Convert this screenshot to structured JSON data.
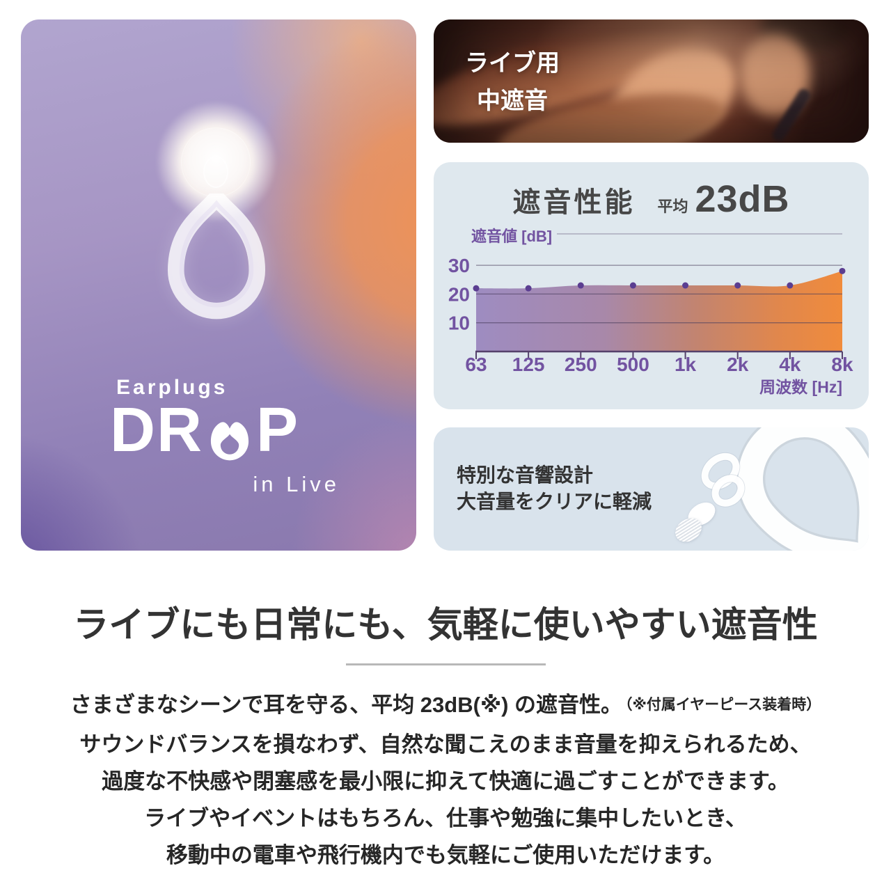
{
  "palette": {
    "page_bg": "#ffffff",
    "chart_panel_bg": "#dfe8ee",
    "feature_panel_bg": "#d9e3ec",
    "accent_purple": "#7253a1",
    "area_orange": "#f08b3c",
    "heading_text": "#333333",
    "body_text": "#262626",
    "chart_title_text": "#474747"
  },
  "brand_panel": {
    "eyebrow": "Earplugs",
    "logo_prefix": "DR",
    "logo_suffix": "P",
    "tagline": "in Live"
  },
  "photo_panel": {
    "label_line1": "ライブ用",
    "label_line2": "中遮音"
  },
  "chart_panel": {
    "title": "遮音性能",
    "average_label": "平均",
    "average_value": "23dB"
  },
  "chart_data": {
    "type": "area",
    "title": "遮音性能 平均 23dB",
    "categories": [
      "63",
      "125",
      "250",
      "500",
      "1k",
      "2k",
      "4k",
      "8k"
    ],
    "values": [
      22,
      22,
      23,
      23,
      23,
      23,
      23,
      28
    ],
    "xlabel": "周波数 [Hz]",
    "ylabel": "遮音値 [dB]",
    "yticks": [
      10,
      20,
      30
    ],
    "ylim": [
      0,
      33
    ],
    "grid": true,
    "legend": false,
    "fill_gradient": [
      {
        "offset": "0%",
        "color": "#9e8cc1"
      },
      {
        "offset": "35%",
        "color": "#a888a9"
      },
      {
        "offset": "60%",
        "color": "#c28470"
      },
      {
        "offset": "82%",
        "color": "#e0874d"
      },
      {
        "offset": "100%",
        "color": "#f08b3c"
      }
    ],
    "dot_color": "#5b3e91",
    "axis_color": "#55416b",
    "grid_color": "rgba(73,62,94,0.6)",
    "label_color": "#7253a1"
  },
  "feature_panel": {
    "line1": "特別な音響設計",
    "line2": "大音量をクリアに軽減"
  },
  "section": {
    "heading": "ライブにも日常にも、気軽に使いやすい遮音性",
    "body_lines": [
      "さまざまなシーンで耳を守る、平均 23dB(※) の遮音性。",
      "サウンドバランスを損なわず、自然な聞こえのまま音量を抑えられるため、",
      "過度な不快感や閉塞感を最小限に抑えて快適に過ごすことができます。",
      "ライブやイベントはもちろん、仕事や勉強に集中したいとき、",
      "移動中の電車や飛行機内でも気軽にご使用いただけます。"
    ],
    "note": "（※付属イヤーピース装着時）"
  }
}
